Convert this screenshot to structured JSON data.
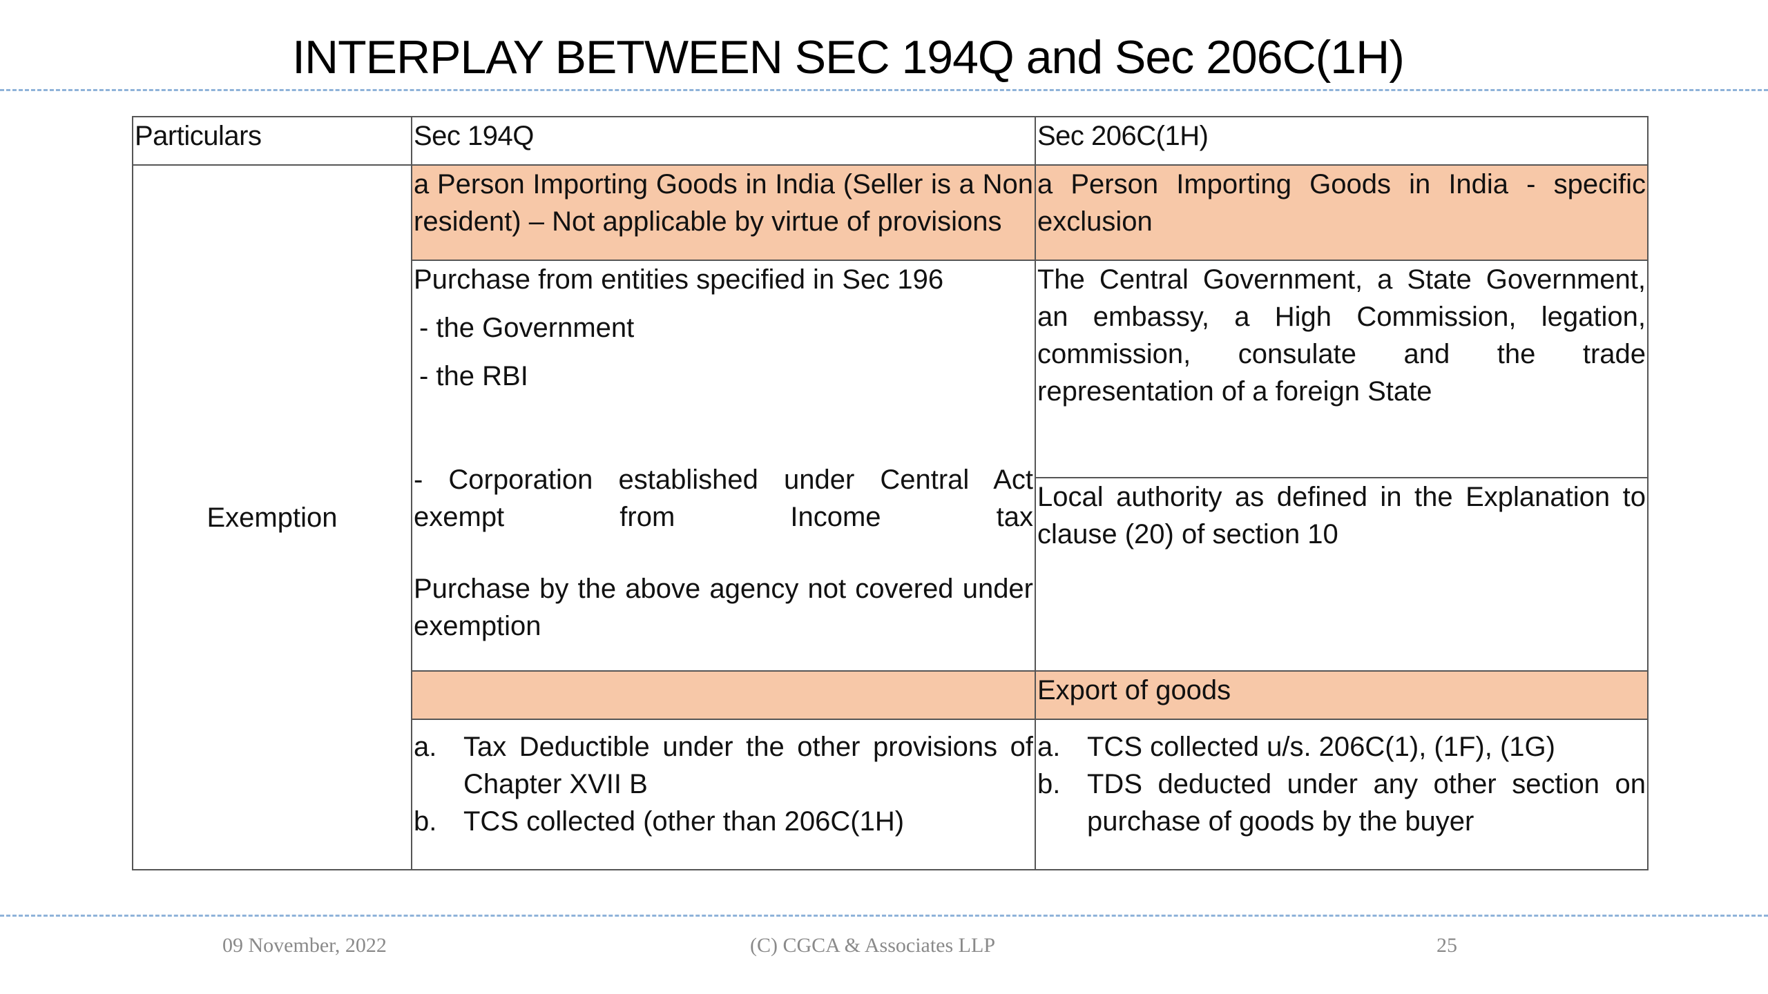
{
  "slide": {
    "title": "INTERPLAY BETWEEN SEC 194Q and Sec 206C(1H)"
  },
  "colors": {
    "highlight_fill": "#f7c8a8",
    "divider_dash": "#8fb3d9",
    "table_border": "#555555",
    "footer_text": "#8a8a8a"
  },
  "table": {
    "headers": {
      "particulars": "Particulars",
      "sec194q": "Sec 194Q",
      "sec206c": "Sec 206C(1H)"
    },
    "exemption_label": "Exemption",
    "import_row": {
      "sec194q": "a Person Importing Goods in India (Seller is a Non resident) – Not applicable by virtue of provisions",
      "sec206c": "a Person Importing Goods in India - specific exclusion"
    },
    "govt_row": {
      "sec194q_intro": "Purchase from entities specified in Sec 196",
      "sec194q_items": [
        "- the Government",
        "- the RBI"
      ],
      "sec206c": "The Central Government, a State Government, an embassy, a High Commission, legation, commission, consulate and the trade representation of a foreign State"
    },
    "local_row": {
      "sec194q_corporation": "- Corporation established under Central Act exempt from Income tax",
      "sec194q_note": "Purchase by the above agency not covered under exemption",
      "sec206c": "Local authority as defined in the Explanation to clause (20) of section 10"
    },
    "export_row": {
      "sec194q": "",
      "sec206c": "Export of goods"
    },
    "tds_row": {
      "sec194q_items": [
        {
          "marker": "a.",
          "text": "Tax Deductible under the other provisions of Chapter XVII B"
        },
        {
          "marker": "b.",
          "text": "TCS collected (other than 206C(1H)"
        }
      ],
      "sec206c_items": [
        {
          "marker": "a.",
          "text": "TCS collected u/s. 206C(1), (1F), (1G)"
        },
        {
          "marker": "b.",
          "text": "TDS deducted under any other section on purchase of goods by the buyer"
        }
      ]
    }
  },
  "footer": {
    "date": "09 November, 2022",
    "copyright": "(C) CGCA & Associates LLP",
    "page_number": "25"
  }
}
